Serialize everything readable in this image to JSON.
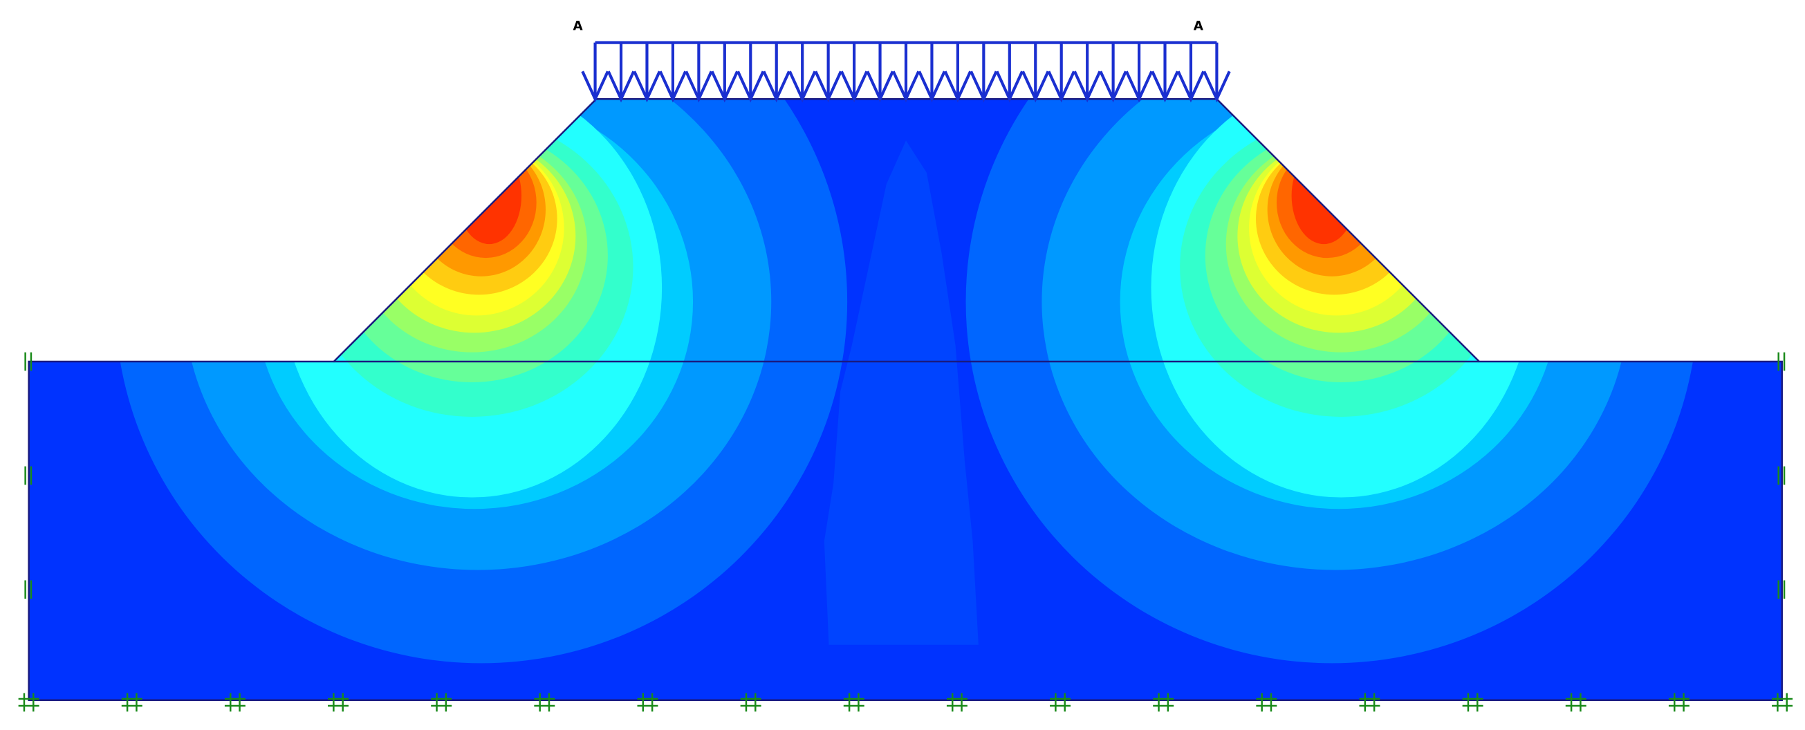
{
  "load_labels": [
    "A",
    "A"
  ]
}
